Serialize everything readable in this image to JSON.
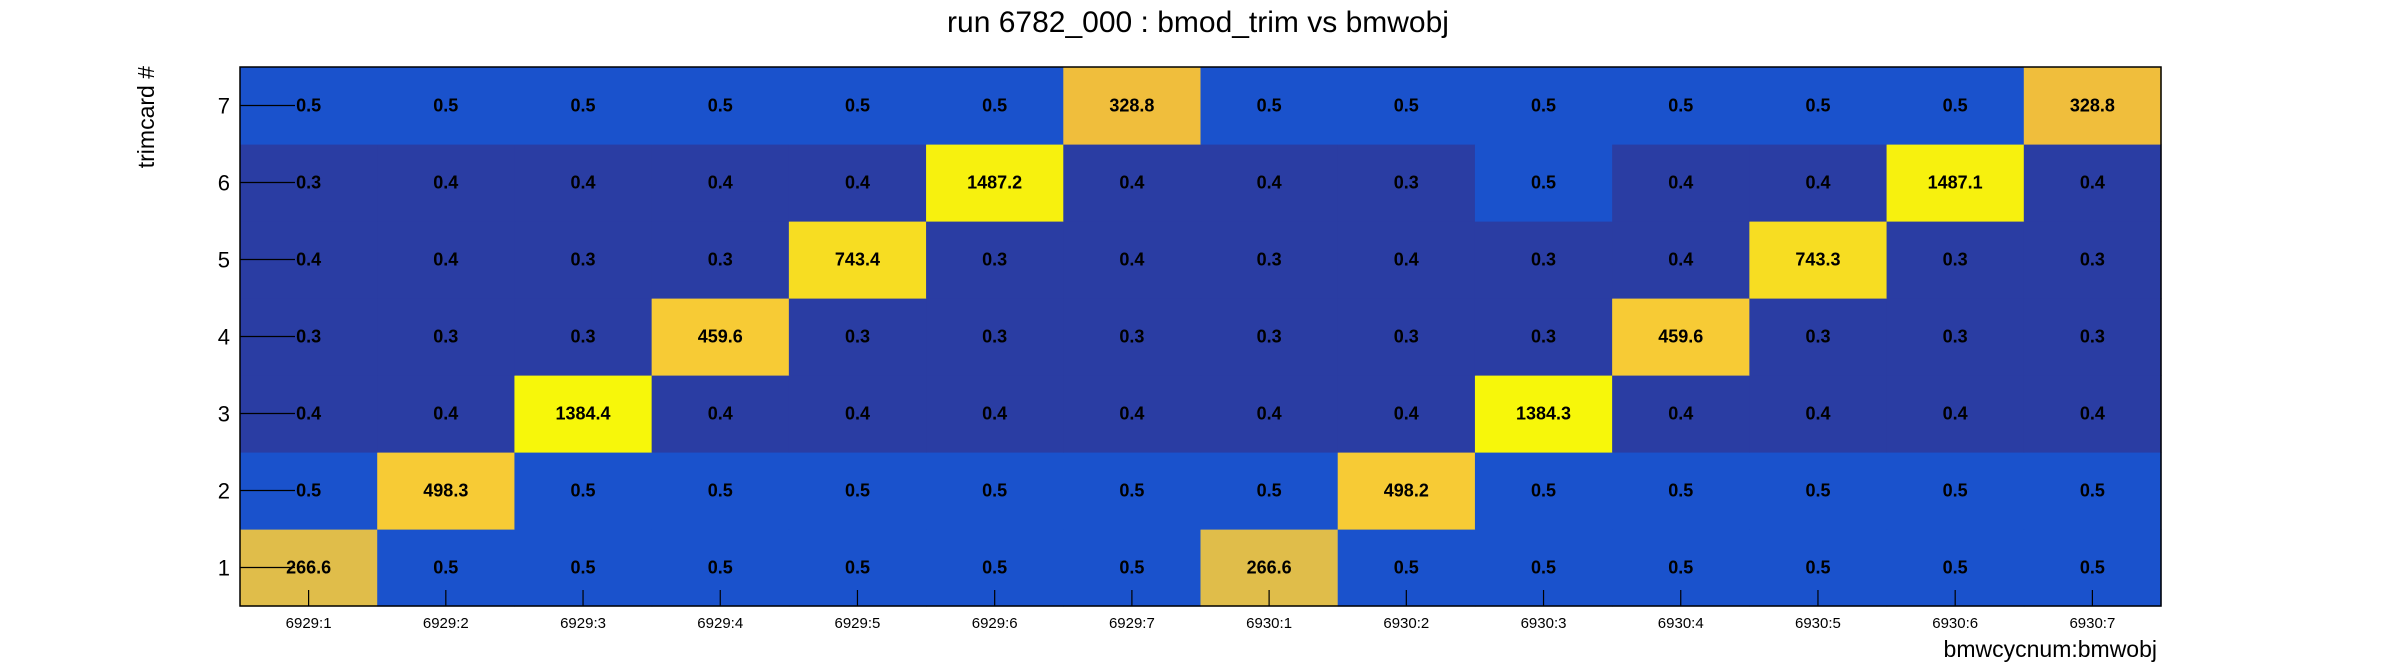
{
  "chart_data": {
    "type": "heatmap",
    "title": "run 6782_000 : bmod_trim vs bmwobj",
    "xlabel": "bmwcycnum:bmwobj",
    "ylabel": "trimcard #",
    "x_categories": [
      "6929:1",
      "6929:2",
      "6929:3",
      "6929:4",
      "6929:5",
      "6929:6",
      "6929:7",
      "6930:1",
      "6930:2",
      "6930:3",
      "6930:4",
      "6930:5",
      "6930:6",
      "6930:7"
    ],
    "y_categories": [
      "1",
      "2",
      "3",
      "4",
      "5",
      "6",
      "7"
    ],
    "values": [
      [
        "266.6",
        "0.5",
        "0.5",
        "0.5",
        "0.5",
        "0.5",
        "0.5",
        "266.6",
        "0.5",
        "0.5",
        "0.5",
        "0.5",
        "0.5",
        "0.5"
      ],
      [
        "0.5",
        "498.3",
        "0.5",
        "0.5",
        "0.5",
        "0.5",
        "0.5",
        "0.5",
        "498.2",
        "0.5",
        "0.5",
        "0.5",
        "0.5",
        "0.5"
      ],
      [
        "0.4",
        "0.4",
        "1384.4",
        "0.4",
        "0.4",
        "0.4",
        "0.4",
        "0.4",
        "0.4",
        "1384.3",
        "0.4",
        "0.4",
        "0.4",
        "0.4"
      ],
      [
        "0.3",
        "0.3",
        "0.3",
        "459.6",
        "0.3",
        "0.3",
        "0.3",
        "0.3",
        "0.3",
        "0.3",
        "459.6",
        "0.3",
        "0.3",
        "0.3"
      ],
      [
        "0.4",
        "0.4",
        "0.3",
        "0.3",
        "743.4",
        "0.3",
        "0.4",
        "0.3",
        "0.4",
        "0.3",
        "0.4",
        "743.3",
        "0.3",
        "0.3"
      ],
      [
        "0.3",
        "0.4",
        "0.4",
        "0.4",
        "0.4",
        "1487.2",
        "0.4",
        "0.4",
        "0.3",
        "0.5",
        "0.4",
        "0.4",
        "1487.1",
        "0.4"
      ],
      [
        "0.5",
        "0.5",
        "0.5",
        "0.5",
        "0.5",
        "0.5",
        "328.8",
        "0.5",
        "0.5",
        "0.5",
        "0.5",
        "0.5",
        "0.5",
        "328.8"
      ]
    ],
    "colors": {
      "low_03": "#2a3da3",
      "low_04": "#2a3da3",
      "low_05": "#1a52cc",
      "v266": "#e0bd4a",
      "v328": "#f0be3c",
      "v459": "#f7cb35",
      "v498": "#f7cb35",
      "v743": "#f7dd22",
      "v1384": "#f7f70a",
      "v1487": "#f7f10e"
    }
  }
}
